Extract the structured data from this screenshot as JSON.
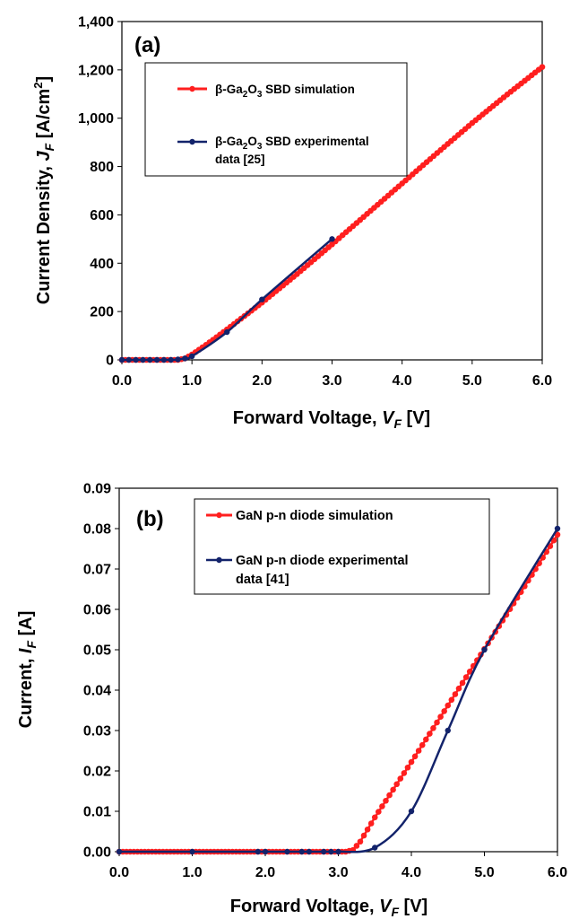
{
  "chart_data": [
    {
      "type": "line",
      "panel_label": "(a)",
      "xlabel": {
        "main": "Forward Voltage, ",
        "var": "V",
        "sub": "F",
        "unit": " [V]"
      },
      "ylabel": {
        "main": "Current Density, ",
        "var": "J",
        "sub": "F",
        "unit": " [A/cm",
        "sup": "2",
        "close": "]"
      },
      "xlim": [
        0,
        6
      ],
      "ylim": [
        0,
        1400
      ],
      "x_ticks": [
        0,
        1,
        2,
        3,
        4,
        5,
        6
      ],
      "x_tick_labels": [
        "0.0",
        "1.0",
        "2.0",
        "3.0",
        "4.0",
        "5.0",
        "6.0"
      ],
      "y_ticks": [
        0,
        200,
        400,
        600,
        800,
        1000,
        1200,
        1400
      ],
      "y_tick_labels": [
        "0",
        "200",
        "400",
        "600",
        "800",
        "1,000",
        "1,200",
        "1,400"
      ],
      "grid": false,
      "legend_position": "top-left",
      "series": [
        {
          "name": "β-Ga2O3 SBD simulation",
          "legend": {
            "pre": "β-Ga",
            "sub1": "2",
            "mid": "O",
            "sub2": "3",
            "post": " SBD simulation"
          },
          "color": "#ff1f1f",
          "marker": "dense-dots",
          "points": [
            [
              0,
              0
            ],
            [
              0.8,
              0
            ],
            [
              0.9,
              6
            ],
            [
              1.0,
              22
            ],
            [
              1.1,
              42
            ],
            [
              1.2,
              62
            ],
            [
              1.3,
              83
            ],
            [
              1.5,
              126
            ],
            [
              2.0,
              237
            ],
            [
              2.5,
              355
            ],
            [
              3.0,
              478
            ],
            [
              3.5,
              604
            ],
            [
              4.0,
              730
            ],
            [
              4.5,
              856
            ],
            [
              5.0,
              980
            ],
            [
              5.5,
              1098
            ],
            [
              6.0,
              1212
            ]
          ]
        },
        {
          "name": "β-Ga2O3 SBD experimental data [25]",
          "legend": {
            "pre": "β-Ga",
            "sub1": "2",
            "mid": "O",
            "sub2": "3",
            "post": " SBD experimental",
            "line2": "data [25]"
          },
          "color": "#13236b",
          "marker": "dot",
          "points": [
            [
              0.0,
              0
            ],
            [
              0.1,
              0
            ],
            [
              0.2,
              0
            ],
            [
              0.3,
              0
            ],
            [
              0.4,
              0
            ],
            [
              0.5,
              0
            ],
            [
              0.6,
              0
            ],
            [
              0.7,
              0
            ],
            [
              0.8,
              2
            ],
            [
              0.9,
              6
            ],
            [
              1.0,
              15
            ],
            [
              1.5,
              115
            ],
            [
              2.0,
              250
            ],
            [
              3.0,
              500
            ]
          ]
        }
      ]
    },
    {
      "type": "line",
      "panel_label": "(b)",
      "xlabel": {
        "main": "Forward Voltage, ",
        "var": "V",
        "sub": "F",
        "unit": " [V]"
      },
      "ylabel": {
        "main": "Current, ",
        "var": "I",
        "sub": "F",
        "unit": " [A]"
      },
      "xlim": [
        0,
        6
      ],
      "ylim": [
        0,
        0.09
      ],
      "x_ticks": [
        0,
        1,
        2,
        3,
        4,
        5,
        6
      ],
      "x_tick_labels": [
        "0.0",
        "1.0",
        "2.0",
        "3.0",
        "4.0",
        "5.0",
        "6.0"
      ],
      "y_ticks": [
        0,
        0.01,
        0.02,
        0.03,
        0.04,
        0.05,
        0.06,
        0.07,
        0.08,
        0.09
      ],
      "y_tick_labels": [
        "0.00",
        "0.01",
        "0.02",
        "0.03",
        "0.04",
        "0.05",
        "0.06",
        "0.07",
        "0.08",
        "0.09"
      ],
      "grid": false,
      "legend_position": "top-left",
      "series": [
        {
          "name": "GaN p-n diode simulation",
          "legend": {
            "pre": "GaN p-n diode simulation"
          },
          "color": "#ff1f1f",
          "marker": "dense-dots",
          "points": [
            [
              0,
              0
            ],
            [
              3.1,
              0
            ],
            [
              3.2,
              0.0004
            ],
            [
              3.3,
              0.0025
            ],
            [
              3.4,
              0.0055
            ],
            [
              3.5,
              0.0085
            ],
            [
              4.0,
              0.0222
            ],
            [
              4.5,
              0.0362
            ],
            [
              5.0,
              0.0502
            ],
            [
              5.5,
              0.0643
            ],
            [
              6.0,
              0.0785
            ]
          ]
        },
        {
          "name": "GaN p-n diode experimental data [41]",
          "legend": {
            "pre": "GaN p-n diode experimental",
            "line2": "data [41]"
          },
          "color": "#13236b",
          "marker": "dot",
          "points": [
            [
              0.0,
              0
            ],
            [
              1.0,
              0
            ],
            [
              1.9,
              0
            ],
            [
              2.0,
              0
            ],
            [
              2.3,
              0
            ],
            [
              2.5,
              0
            ],
            [
              2.6,
              0
            ],
            [
              2.8,
              0
            ],
            [
              2.9,
              0
            ],
            [
              3.0,
              0
            ],
            [
              3.5,
              0.001
            ],
            [
              4.0,
              0.01
            ],
            [
              4.5,
              0.03
            ],
            [
              5.0,
              0.05
            ],
            [
              6.0,
              0.08
            ]
          ]
        }
      ]
    }
  ]
}
